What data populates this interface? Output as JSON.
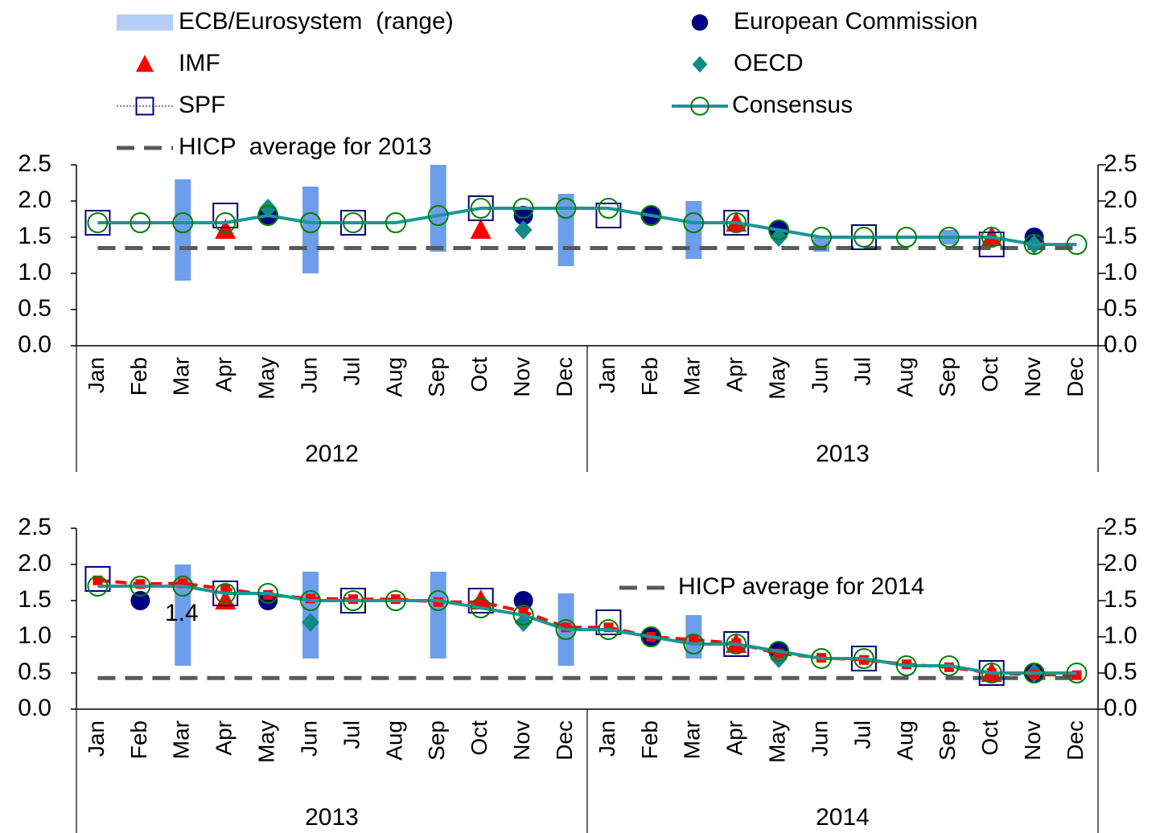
{
  "chart_data": [
    {
      "type": "line",
      "legend": "top",
      "category_groups": [
        {
          "label": "2012",
          "categories": [
            "Jan",
            "Feb",
            "Mar",
            "Apr",
            "May",
            "Jun",
            "Jul",
            "Aug",
            "Sep",
            "Oct",
            "Nov",
            "Dec"
          ]
        },
        {
          "label": "2013",
          "categories": [
            "Jan",
            "Feb",
            "Mar",
            "Apr",
            "May",
            "Jun",
            "Jul",
            "Aug",
            "Sep",
            "Oct",
            "Nov",
            "Dec"
          ]
        }
      ],
      "ylim": [
        0,
        2.5
      ],
      "yticks": [
        {
          "value": 0,
          "label": "0.0"
        },
        0.5,
        {
          "value": 1,
          "label": "1.0"
        },
        1.5,
        {
          "value": 2,
          "label": "2.0"
        },
        2.5
      ],
      "y2lim": [
        0,
        2.5
      ],
      "y2ticks": [
        {
          "value": 0,
          "label": "0.0"
        },
        0.5,
        {
          "value": 1,
          "label": "1.0"
        },
        1.5,
        {
          "value": 2,
          "label": "2.0"
        },
        2.5
      ],
      "hline": {
        "name": "HICP  average for 2013",
        "value": 1.35,
        "color": "#595959"
      },
      "series": [
        {
          "name": "ECB/Eurosystem  (range)",
          "marker": "range",
          "color": "#6d9eeb",
          "low": [
            null,
            null,
            0.9,
            null,
            null,
            1.0,
            null,
            null,
            1.3,
            null,
            null,
            1.1,
            null,
            null,
            1.2,
            null,
            null,
            1.3,
            null,
            null,
            1.4,
            null,
            null,
            null
          ],
          "high": [
            null,
            null,
            2.3,
            null,
            null,
            2.2,
            null,
            null,
            2.5,
            null,
            null,
            2.1,
            null,
            null,
            2.0,
            null,
            null,
            1.5,
            null,
            null,
            1.6,
            null,
            null,
            null
          ]
        },
        {
          "name": "IMF",
          "marker": "triangle",
          "color": "#ff0000",
          "values": [
            null,
            null,
            null,
            1.6,
            null,
            null,
            null,
            null,
            null,
            1.6,
            null,
            null,
            null,
            null,
            null,
            1.7,
            null,
            null,
            null,
            null,
            null,
            1.5,
            null,
            null
          ]
        },
        {
          "name": "SPF",
          "marker": "square",
          "color": "#000080",
          "values": [
            1.7,
            null,
            null,
            1.8,
            null,
            null,
            1.7,
            null,
            null,
            1.9,
            null,
            null,
            1.8,
            null,
            null,
            1.7,
            null,
            null,
            1.5,
            null,
            null,
            1.4,
            null,
            null
          ]
        },
        {
          "name": "European Commission",
          "marker": "circle",
          "color": "#000080",
          "values": [
            null,
            null,
            null,
            null,
            1.8,
            null,
            null,
            null,
            null,
            null,
            1.8,
            null,
            null,
            1.8,
            null,
            null,
            1.6,
            null,
            null,
            null,
            null,
            null,
            1.5,
            null
          ]
        },
        {
          "name": "OECD",
          "marker": "diamond",
          "color": "#138a8a",
          "values": [
            null,
            null,
            null,
            null,
            1.9,
            null,
            null,
            null,
            null,
            null,
            1.6,
            null,
            null,
            null,
            null,
            null,
            1.5,
            null,
            null,
            null,
            null,
            null,
            1.4,
            null
          ]
        },
        {
          "name": "Consensus",
          "marker": "line-circle",
          "color": "#1a9696",
          "values": [
            1.7,
            1.7,
            1.7,
            1.7,
            1.8,
            1.7,
            1.7,
            1.7,
            1.8,
            1.9,
            1.9,
            1.9,
            1.9,
            1.8,
            1.7,
            1.7,
            1.6,
            1.5,
            1.5,
            1.5,
            1.5,
            1.5,
            1.4,
            1.4
          ]
        }
      ]
    },
    {
      "type": "line",
      "category_groups": [
        {
          "label": "2013",
          "categories": [
            "Jan",
            "Feb",
            "Mar",
            "Apr",
            "May",
            "Jun",
            "Jul",
            "Aug",
            "Sep",
            "Oct",
            "Nov",
            "Dec"
          ]
        },
        {
          "label": "2014",
          "categories": [
            "Jan",
            "Feb",
            "Mar",
            "Apr",
            "May",
            "Jun",
            "Jul",
            "Aug",
            "Sep",
            "Oct",
            "Nov",
            "Dec"
          ]
        }
      ],
      "ylim": [
        0,
        2.5
      ],
      "yticks": [
        {
          "value": 0,
          "label": "0.0"
        },
        0.5,
        {
          "value": 1,
          "label": "1.0"
        },
        1.5,
        {
          "value": 2,
          "label": "2.0"
        },
        2.5
      ],
      "y2lim": [
        0,
        2.5
      ],
      "y2ticks": [
        {
          "value": 0,
          "label": "0.0"
        },
        0.5,
        {
          "value": 1,
          "label": "1.0"
        },
        1.5,
        {
          "value": 2,
          "label": "2.0"
        },
        2.5
      ],
      "hline": {
        "name": "HICP average for 2014",
        "value": 0.43,
        "color": "#595959"
      },
      "annotations": [
        "1.4"
      ],
      "series": [
        {
          "marker": "range",
          "color": "#6d9eeb",
          "low": [
            null,
            null,
            0.6,
            null,
            null,
            0.7,
            null,
            null,
            0.7,
            null,
            null,
            0.6,
            null,
            null,
            0.7,
            null,
            null,
            null,
            null,
            null,
            null,
            null,
            null,
            null
          ],
          "high": [
            null,
            null,
            2.0,
            null,
            null,
            1.9,
            null,
            null,
            1.9,
            null,
            null,
            1.6,
            null,
            null,
            1.3,
            null,
            null,
            null,
            null,
            null,
            null,
            null,
            null,
            null
          ]
        },
        {
          "marker": "triangle",
          "color": "#ff0000",
          "values": [
            null,
            null,
            null,
            1.5,
            null,
            null,
            null,
            null,
            null,
            1.5,
            null,
            null,
            null,
            null,
            null,
            0.9,
            null,
            null,
            null,
            null,
            null,
            0.5,
            null,
            null
          ]
        },
        {
          "marker": "square",
          "color": "#000080",
          "values": [
            1.8,
            null,
            null,
            1.6,
            null,
            null,
            1.5,
            null,
            null,
            1.5,
            null,
            null,
            1.2,
            null,
            null,
            0.9,
            null,
            null,
            0.7,
            null,
            null,
            0.5,
            null,
            null
          ]
        },
        {
          "marker": "circle",
          "color": "#000080",
          "values": [
            null,
            1.5,
            null,
            null,
            1.5,
            null,
            null,
            null,
            null,
            null,
            1.5,
            null,
            null,
            1.0,
            null,
            null,
            0.8,
            null,
            null,
            null,
            null,
            null,
            0.5,
            null
          ]
        },
        {
          "marker": "diamond",
          "color": "#138a8a",
          "values": [
            null,
            null,
            null,
            null,
            null,
            1.2,
            null,
            null,
            null,
            null,
            1.2,
            null,
            null,
            null,
            null,
            null,
            0.7,
            null,
            null,
            null,
            null,
            null,
            0.5,
            null
          ]
        },
        {
          "marker": "dashed-square",
          "color": "#ff0000",
          "values": [
            1.78,
            1.73,
            1.74,
            1.66,
            1.58,
            1.53,
            1.52,
            1.52,
            1.48,
            1.48,
            1.35,
            1.13,
            1.13,
            1.0,
            0.96,
            0.91,
            0.77,
            0.71,
            0.68,
            0.62,
            0.58,
            0.5,
            0.48,
            0.47
          ]
        },
        {
          "marker": "line-circle",
          "color": "#1a9696",
          "values": [
            1.7,
            1.7,
            1.7,
            1.6,
            1.6,
            1.5,
            1.5,
            1.5,
            1.5,
            1.4,
            1.3,
            1.1,
            1.1,
            1.0,
            0.9,
            0.9,
            0.8,
            0.7,
            0.7,
            0.6,
            0.6,
            0.5,
            0.5,
            0.5
          ]
        }
      ]
    }
  ]
}
